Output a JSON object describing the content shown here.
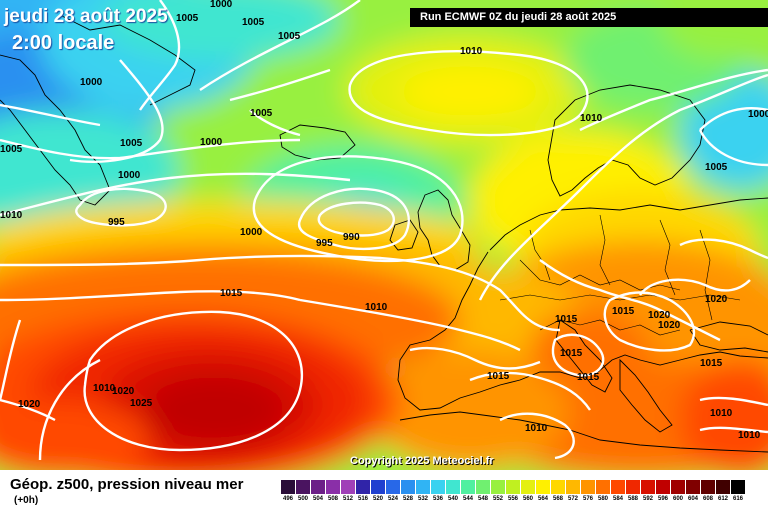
{
  "header": {
    "date": "jeudi 28 août 2025",
    "time": "2:00 locale",
    "run": "Run ECMWF 0Z du jeudi 28 août 2025"
  },
  "copyright": "Copyright 2025 Meteociel.fr",
  "footer": {
    "product": "Géop. z500, pression niveau mer",
    "offset": "(+0h)"
  },
  "legend": {
    "values": [
      "496",
      "500",
      "504",
      "508",
      "512",
      "516",
      "520",
      "524",
      "528",
      "532",
      "536",
      "540",
      "544",
      "548",
      "552",
      "556",
      "560",
      "564",
      "568",
      "572",
      "576",
      "580",
      "584",
      "588",
      "592",
      "596",
      "600",
      "604",
      "608",
      "612",
      "616"
    ],
    "colors": [
      "#2a0d38",
      "#4a1460",
      "#6c1f88",
      "#8a2fa8",
      "#a040b8",
      "#3024a8",
      "#2040d0",
      "#2868e8",
      "#2a90f0",
      "#30b4f4",
      "#3ad2f0",
      "#40e6d0",
      "#50f0a0",
      "#70f070",
      "#98f040",
      "#c0f020",
      "#e4f010",
      "#fff000",
      "#ffd800",
      "#ffb800",
      "#ff9400",
      "#ff7000",
      "#ff4800",
      "#f02800",
      "#d81000",
      "#c00000",
      "#a00000",
      "#800000",
      "#600000",
      "#400000",
      "#000000"
    ]
  },
  "isobar_labels": [
    "1000",
    "1005",
    "1005",
    "1005",
    "1000",
    "1005",
    "1005",
    "1000",
    "1000",
    "995",
    "990",
    "995",
    "1000",
    "1010",
    "1010",
    "1005",
    "1010",
    "1015",
    "1010",
    "1015",
    "1015",
    "1020",
    "1020",
    "1015",
    "1015",
    "1015",
    "1015",
    "1005",
    "1010",
    "1010",
    "1020",
    "1025",
    "1020",
    "1010",
    "1020",
    "1010",
    "1000"
  ],
  "colors": {
    "background_gradient_note": "geopotential shading",
    "isobar": "#ffffff",
    "coast": "#000000"
  }
}
